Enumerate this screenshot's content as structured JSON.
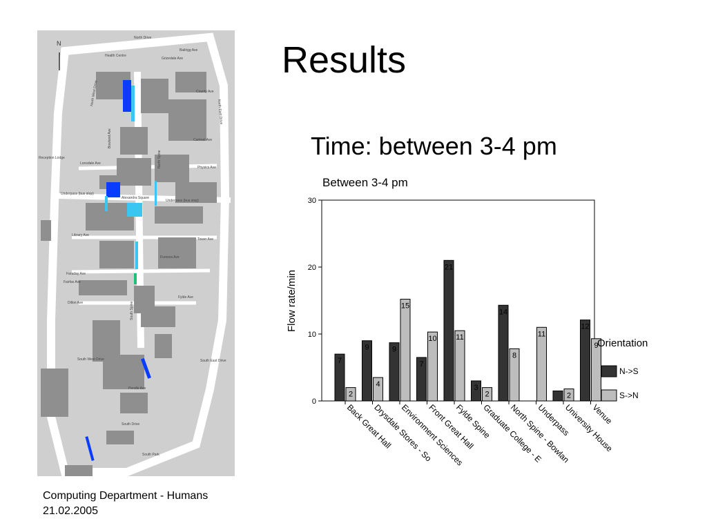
{
  "slide": {
    "title": "Results",
    "subtitle": "Time: between 3-4 pm",
    "footer_line1": "Computing Department - Humans",
    "footer_line2": "21.02.2005"
  },
  "map": {
    "north_label": "N",
    "labels": [
      "North Drive",
      "Health Centre",
      "Reception Lodge",
      "Lonsdale Ave",
      "Underpass (bus stop)",
      "Alexandra Square",
      "Underpass (bus stop)",
      "Library Ave",
      "Faraday Ave",
      "Furness Ave",
      "Fylde Ave",
      "Fairfax Ave",
      "Dillon Ave",
      "South West Drive",
      "South East Drive",
      "South Drive",
      "South Park",
      "Pendle Ave",
      "Bowland Ave",
      "North Spine",
      "South Spine",
      "County Ave",
      "Cartmel Ave",
      "Physics Ave",
      "Tower Ave",
      "Bailrigg Ave",
      "Grizedale Ave",
      "North West Drive",
      "North East Drive"
    ],
    "highlight_color_dark": "#0a3cff",
    "highlight_color_light": "#39c6f0",
    "highlight_color_green": "#1fbf7a"
  },
  "chart_data": {
    "type": "bar",
    "title": "Between 3-4 pm",
    "xlabel": "",
    "ylabel": "Flow rate/min",
    "ylim": [
      0,
      30
    ],
    "yticks": [
      0,
      10,
      20,
      30
    ],
    "legend_title": "Orientation",
    "legend_position": "right",
    "categories": [
      "Back Great Hall",
      "Drysdale Stores - So",
      "Environment Sciences",
      "Front Great Hall",
      "Fylde Spine",
      "Graduate College - E",
      "North Spine - Bowlan",
      "Underpass",
      "University House",
      "Venue"
    ],
    "series": [
      {
        "name": "N->S",
        "color": "#333333",
        "values": [
          7,
          9,
          8.7,
          6.5,
          21,
          3,
          14.3,
          null,
          1.5,
          12.1
        ],
        "labels": [
          "7",
          "9",
          "9",
          "7",
          "21",
          "3",
          "14",
          "",
          "",
          "12"
        ]
      },
      {
        "name": "S->N",
        "color": "#bdbdbd",
        "values": [
          2,
          3.5,
          15.2,
          10.3,
          10.5,
          2,
          7.8,
          11,
          1.8,
          9.3
        ],
        "labels": [
          "2",
          "4",
          "15",
          "10",
          "11",
          "2",
          "8",
          "11",
          "2",
          "9"
        ]
      }
    ]
  }
}
